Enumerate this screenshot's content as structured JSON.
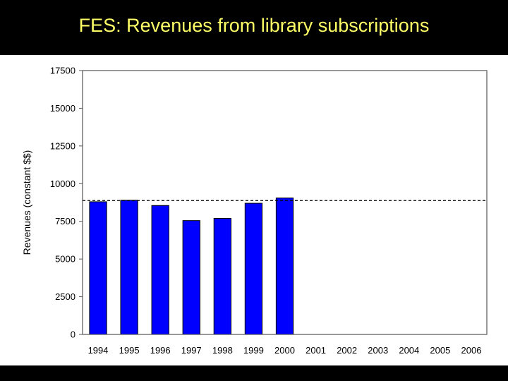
{
  "slide": {
    "title": "FES: Revenues from library subscriptions"
  },
  "chart_data": {
    "type": "bar",
    "categories": [
      "1994",
      "1995",
      "1996",
      "1997",
      "1998",
      "1999",
      "2000",
      "2001",
      "2002",
      "2003",
      "2004",
      "2005",
      "2006"
    ],
    "values": [
      8800,
      8900,
      8550,
      7550,
      7700,
      8700,
      9050,
      null,
      null,
      null,
      null,
      null,
      null
    ],
    "ylabel": "Revenues (constant $$)",
    "xlabel": "",
    "ylim": [
      0,
      17500
    ],
    "yticks": [
      0,
      2500,
      5000,
      7500,
      10000,
      12500,
      15000,
      17500
    ],
    "reference_line": {
      "value": 8880,
      "style": "dashed",
      "color": "#000000"
    },
    "bar_color": "#0000FF",
    "bar_edge_color": "#000000",
    "grid": false
  }
}
